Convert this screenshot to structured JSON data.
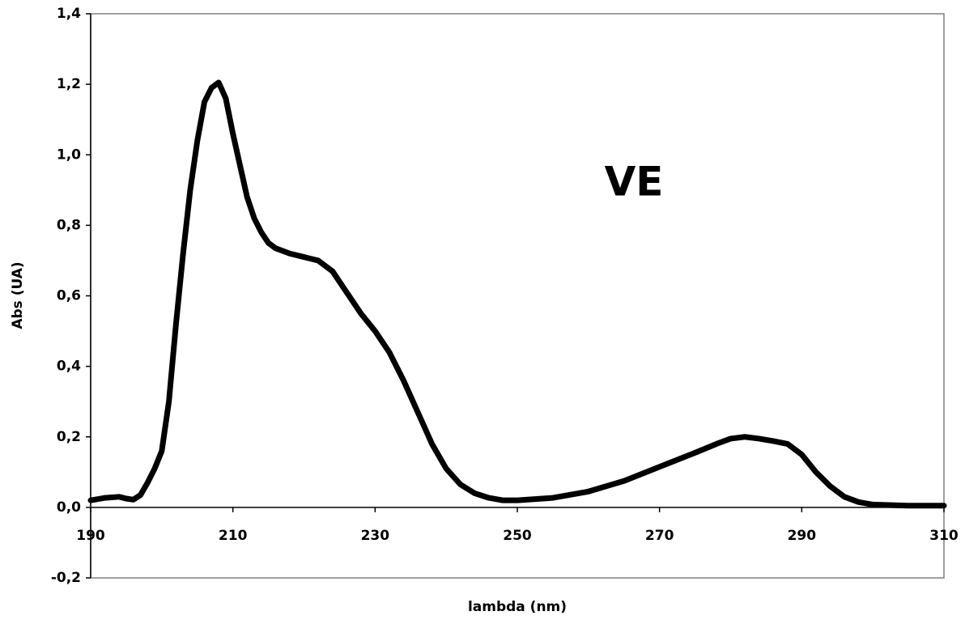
{
  "chart_data": {
    "type": "line",
    "x_label": "lambda (nm)",
    "y_label": "Abs (UA)",
    "annotations": [
      "VE"
    ],
    "xlim": [
      190,
      310
    ],
    "xticks": [
      190,
      210,
      230,
      250,
      270,
      290,
      310
    ],
    "ylim": [
      -0.2,
      1.4
    ],
    "yticks": [
      {
        "value": -0.2,
        "label": "-0,2"
      },
      {
        "value": 0,
        "label": "0,0"
      },
      {
        "value": 0.2,
        "label": "0,2"
      },
      {
        "value": 0.4,
        "label": "0,4"
      },
      {
        "value": 0.6,
        "label": "0,6"
      },
      {
        "value": 0.8,
        "label": "0,8"
      },
      {
        "value": 1.0,
        "label": "1,0"
      },
      {
        "value": 1.2,
        "label": "1,2"
      },
      {
        "value": 1.4,
        "label": "1,4"
      }
    ],
    "grid": false,
    "series": [
      {
        "color": "#000000",
        "x": [
          190,
          192,
          194,
          195,
          196,
          197,
          198,
          199,
          200,
          201,
          202,
          203,
          204,
          205,
          206,
          207,
          208,
          209,
          210,
          211,
          212,
          213,
          214,
          215,
          216,
          218,
          220,
          222,
          224,
          226,
          228,
          230,
          232,
          234,
          236,
          238,
          240,
          242,
          244,
          246,
          248,
          250,
          255,
          260,
          265,
          270,
          275,
          278,
          280,
          282,
          284,
          286,
          288,
          290,
          292,
          294,
          296,
          298,
          300,
          305,
          310
        ],
        "values": [
          0.02,
          0.027,
          0.03,
          0.025,
          0.022,
          0.035,
          0.07,
          0.11,
          0.16,
          0.3,
          0.52,
          0.72,
          0.9,
          1.04,
          1.15,
          1.19,
          1.205,
          1.16,
          1.06,
          0.97,
          0.88,
          0.82,
          0.78,
          0.75,
          0.735,
          0.72,
          0.71,
          0.7,
          0.67,
          0.61,
          0.55,
          0.5,
          0.44,
          0.36,
          0.27,
          0.18,
          0.11,
          0.065,
          0.04,
          0.027,
          0.02,
          0.02,
          0.027,
          0.045,
          0.075,
          0.115,
          0.155,
          0.18,
          0.195,
          0.2,
          0.195,
          0.188,
          0.18,
          0.15,
          0.1,
          0.06,
          0.03,
          0.015,
          0.008,
          0.005,
          0.005
        ]
      }
    ]
  }
}
